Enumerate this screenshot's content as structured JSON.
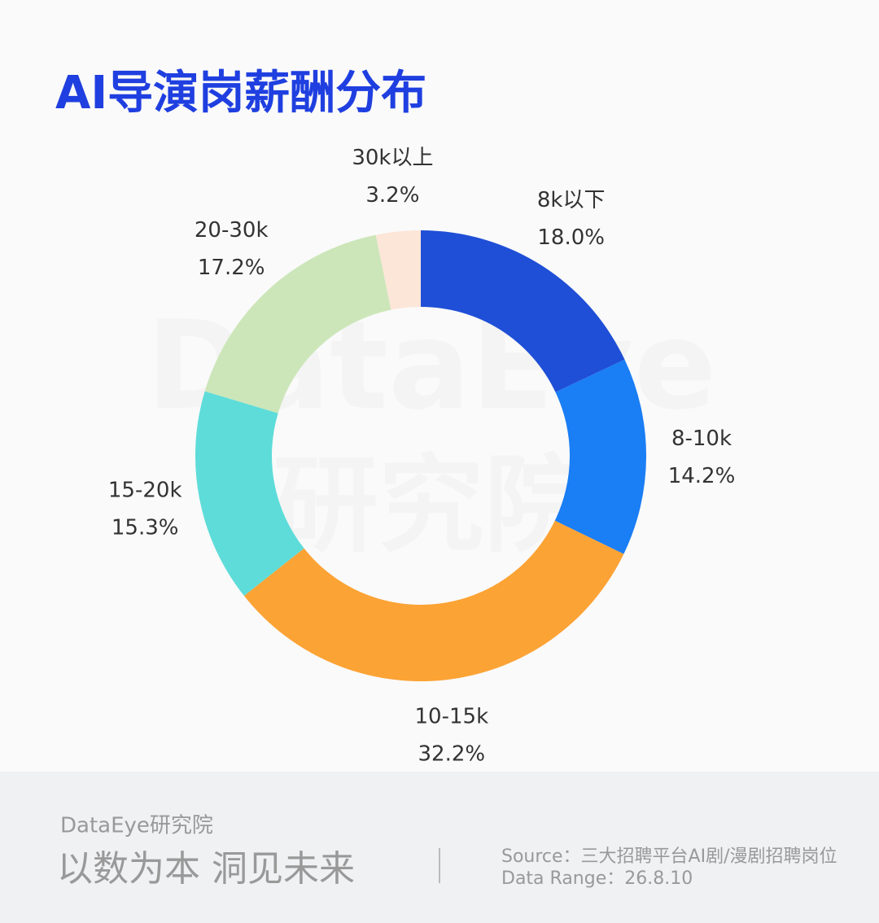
{
  "chart_data": {
    "type": "pie",
    "title": "AI导演岗薪酬分布",
    "categories": [
      "8k以下",
      "8-10k",
      "10-15k",
      "15-20k",
      "20-30k",
      "30k以上"
    ],
    "values": [
      18.0,
      14.2,
      32.2,
      15.3,
      17.2,
      3.2
    ],
    "value_labels": [
      "18.0%",
      "14.2%",
      "32.2%",
      "15.3%",
      "17.2%",
      "3.2%"
    ],
    "colors": [
      "#1f4fd6",
      "#1a7ef5",
      "#fca335",
      "#5edcd9",
      "#cce6b9",
      "#fce6d8"
    ],
    "watermark": [
      "DataEye",
      "研究院"
    ]
  },
  "footer": {
    "brand": "DataEye研究院",
    "slogan": "以数为本 洞见未来",
    "source": "Source：三大招聘平台AI剧/漫剧招聘岗位",
    "range": "Data Range：26.8.10"
  }
}
